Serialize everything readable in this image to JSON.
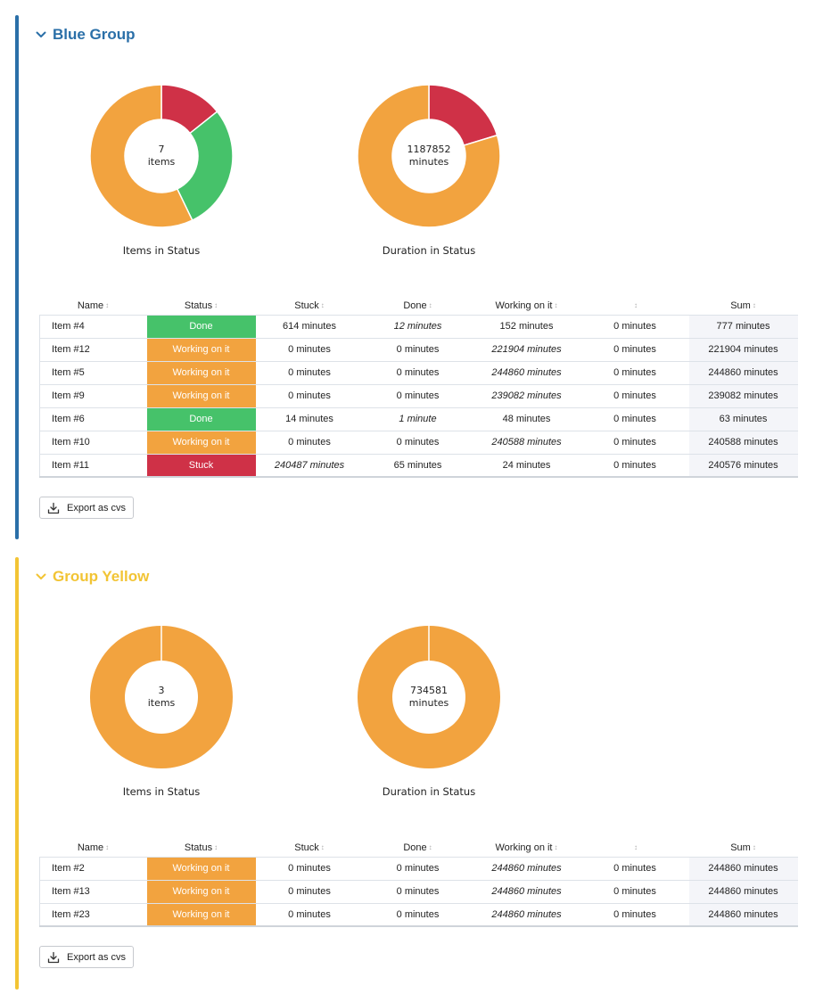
{
  "colors": {
    "blue": "#2a6fa8",
    "yellow": "#f2c434",
    "done": "#46c26a",
    "working": "#f2a33f",
    "stuck": "#cf3147"
  },
  "groups": [
    {
      "title": "Blue Group",
      "color": "#2a6fa8",
      "chevron_icon": "chevron-down-icon",
      "items_chart": {
        "center_value": "7",
        "center_unit": "items",
        "label": "Items in Status",
        "segments": [
          {
            "status": "Stuck",
            "value": 1,
            "color": "#cf3147"
          },
          {
            "status": "Done",
            "value": 2,
            "color": "#46c26a"
          },
          {
            "status": "Working on it",
            "value": 4,
            "color": "#f2a33f"
          }
        ]
      },
      "duration_chart": {
        "center_value": "1187852",
        "center_unit": "minutes",
        "label": "Duration in Status",
        "segments": [
          {
            "status": "Stuck",
            "value": 241116,
            "color": "#cf3147"
          },
          {
            "status": "Done",
            "value": 77,
            "color": "#46c26a"
          },
          {
            "status": "Working on it",
            "value": 946659,
            "color": "#f2a33f"
          }
        ]
      },
      "columns": [
        "Name",
        "Status",
        "Stuck",
        "Done",
        "Working on it",
        "",
        "Sum"
      ],
      "rows": [
        {
          "name": "Item #4",
          "status": "Done",
          "status_color": "#46c26a",
          "stuck": "614 minutes",
          "done": "12 minutes",
          "working": "152 minutes",
          "other": "0 minutes",
          "sum": "777 minutes",
          "italic": "done"
        },
        {
          "name": "Item #12",
          "status": "Working on it",
          "status_color": "#f2a33f",
          "stuck": "0 minutes",
          "done": "0 minutes",
          "working": "221904 minutes",
          "other": "0 minutes",
          "sum": "221904 minutes",
          "italic": "working"
        },
        {
          "name": "Item #5",
          "status": "Working on it",
          "status_color": "#f2a33f",
          "stuck": "0 minutes",
          "done": "0 minutes",
          "working": "244860 minutes",
          "other": "0 minutes",
          "sum": "244860 minutes",
          "italic": "working"
        },
        {
          "name": "Item #9",
          "status": "Working on it",
          "status_color": "#f2a33f",
          "stuck": "0 minutes",
          "done": "0 minutes",
          "working": "239082 minutes",
          "other": "0 minutes",
          "sum": "239082 minutes",
          "italic": "working"
        },
        {
          "name": "Item #6",
          "status": "Done",
          "status_color": "#46c26a",
          "stuck": "14 minutes",
          "done": "1 minute",
          "working": "48 minutes",
          "other": "0 minutes",
          "sum": "63 minutes",
          "italic": "done"
        },
        {
          "name": "Item #10",
          "status": "Working on it",
          "status_color": "#f2a33f",
          "stuck": "0 minutes",
          "done": "0 minutes",
          "working": "240588 minutes",
          "other": "0 minutes",
          "sum": "240588 minutes",
          "italic": "working"
        },
        {
          "name": "Item #11",
          "status": "Stuck",
          "status_color": "#cf3147",
          "stuck": "240487 minutes",
          "done": "65 minutes",
          "working": "24 minutes",
          "other": "0 minutes",
          "sum": "240576 minutes",
          "italic": "stuck"
        }
      ],
      "export_label": "Export as cvs",
      "export_icon": "download-icon"
    },
    {
      "title": "Group Yellow",
      "color": "#f2c434",
      "chevron_icon": "chevron-down-icon",
      "items_chart": {
        "center_value": "3",
        "center_unit": "items",
        "label": "Items in Status",
        "segments": [
          {
            "status": "Working on it",
            "value": 3,
            "color": "#f2a33f"
          }
        ]
      },
      "duration_chart": {
        "center_value": "734581",
        "center_unit": "minutes",
        "label": "Duration in Status",
        "segments": [
          {
            "status": "Working on it",
            "value": 734580,
            "color": "#f2a33f"
          }
        ]
      },
      "columns": [
        "Name",
        "Status",
        "Stuck",
        "Done",
        "Working on it",
        "",
        "Sum"
      ],
      "rows": [
        {
          "name": "Item #2",
          "status": "Working on it",
          "status_color": "#f2a33f",
          "stuck": "0 minutes",
          "done": "0 minutes",
          "working": "244860 minutes",
          "other": "0 minutes",
          "sum": "244860 minutes",
          "italic": "working"
        },
        {
          "name": "Item #13",
          "status": "Working on it",
          "status_color": "#f2a33f",
          "stuck": "0 minutes",
          "done": "0 minutes",
          "working": "244860 minutes",
          "other": "0 minutes",
          "sum": "244860 minutes",
          "italic": "working"
        },
        {
          "name": "Item #23",
          "status": "Working on it",
          "status_color": "#f2a33f",
          "stuck": "0 minutes",
          "done": "0 minutes",
          "working": "244860 minutes",
          "other": "0 minutes",
          "sum": "244860 minutes",
          "italic": "working"
        }
      ],
      "export_label": "Export as cvs",
      "export_icon": "download-icon"
    }
  ]
}
